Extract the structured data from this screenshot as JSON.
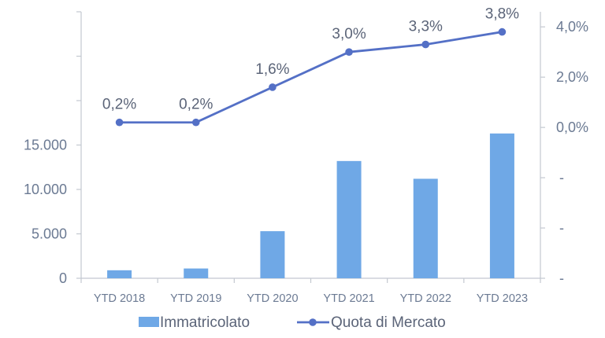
{
  "chart_data": {
    "type": "bar",
    "categories": [
      "YTD 2018",
      "YTD 2019",
      "YTD 2020",
      "YTD 2021",
      "YTD 2022",
      "YTD 2023"
    ],
    "series": [
      {
        "name": "Immatricolato",
        "type": "bar",
        "axis": "left",
        "color": "#6fa8e6",
        "values": [
          900,
          1100,
          5300,
          13200,
          11200,
          16300
        ]
      },
      {
        "name": "Quota di Mercato",
        "type": "line",
        "axis": "right",
        "color": "#5470c6",
        "values": [
          0.2,
          0.2,
          1.6,
          3.0,
          3.3,
          3.8
        ],
        "labels": [
          "0,2%",
          "0,2%",
          "1,6%",
          "3,0%",
          "3,3%",
          "3,8%"
        ]
      }
    ],
    "left_axis": {
      "ticks": [
        0,
        5000,
        10000,
        15000
      ],
      "tick_labels": [
        "0",
        "5.000",
        "10.000",
        "15.000"
      ],
      "ylim": [
        0,
        30000
      ]
    },
    "right_axis": {
      "ticks": [
        -6,
        -4,
        -2,
        0,
        2,
        4
      ],
      "tick_labels": [
        "-",
        "-",
        "-",
        "0,0%",
        "2,0%",
        "4,0%"
      ],
      "ylim": [
        -6,
        4.6
      ]
    },
    "legend_position": "bottom",
    "grid": false
  }
}
